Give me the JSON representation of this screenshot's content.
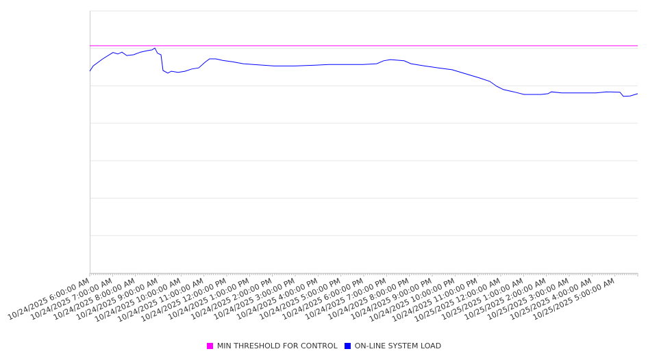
{
  "chart_data": {
    "type": "line",
    "title": "",
    "xlabel": "",
    "ylabel": "",
    "grid": true,
    "legend_position": "bottom",
    "x_unit": "hours since 10/24/2025 6:00:00 AM",
    "xlim": [
      0,
      24
    ],
    "ylim": [
      0,
      7
    ],
    "x_tick_labels": [
      "10/24/2025 6:00:00 AM",
      "10/24/2025 7:00:00 AM",
      "10/24/2025 8:00:00 AM",
      "10/24/2025 9:00:00 AM",
      "10/24/2025 10:00:00 AM",
      "10/24/2025 11:00:00 AM",
      "10/24/2025 12:00:00 PM",
      "10/24/2025 1:00:00 PM",
      "10/24/2025 2:00:00 PM",
      "10/24/2025 3:00:00 PM",
      "10/24/2025 4:00:00 PM",
      "10/24/2025 5:00:00 PM",
      "10/24/2025 6:00:00 PM",
      "10/24/2025 7:00:00 PM",
      "10/24/2025 8:00:00 PM",
      "10/24/2025 9:00:00 PM",
      "10/24/2025 10:00:00 PM",
      "10/24/2025 11:00:00 PM",
      "10/25/2025 12:00:00 AM",
      "10/25/2025 1:00:00 AM",
      "10/25/2025 2:00:00 AM",
      "10/25/2025 3:00:00 AM",
      "10/25/2025 4:00:00 AM",
      "10/25/2025 5:00:00 AM"
    ],
    "series": [
      {
        "name": "MIN THRESHOLD FOR CONTROL",
        "color": "#ff00ff",
        "x": [
          0,
          24
        ],
        "y": [
          6.07,
          6.07
        ]
      },
      {
        "name": "ON-LINE SYSTEM LOAD",
        "color": "#0000ff",
        "x": [
          0,
          0.15,
          0.57,
          1.02,
          1.23,
          1.41,
          1.62,
          1.92,
          2.22,
          2.52,
          2.73,
          2.85,
          2.97,
          3.12,
          3.21,
          3.42,
          3.57,
          3.87,
          4.17,
          4.47,
          4.77,
          5.07,
          5.25,
          5.52,
          5.82,
          6.27,
          6.72,
          7.17,
          8.07,
          8.97,
          9.87,
          10.47,
          11.07,
          11.97,
          12.57,
          12.87,
          13.17,
          13.77,
          14.07,
          14.67,
          15.27,
          15.87,
          16.47,
          17.07,
          17.52,
          17.82,
          18.12,
          18.57,
          19.02,
          19.77,
          20.07,
          20.22,
          20.67,
          21.42,
          22.17,
          22.62,
          23.22,
          23.37,
          23.67,
          24.0
        ],
        "y": [
          5.39,
          5.53,
          5.72,
          5.89,
          5.85,
          5.9,
          5.81,
          5.83,
          5.9,
          5.94,
          5.96,
          6.01,
          5.87,
          5.83,
          5.41,
          5.34,
          5.39,
          5.36,
          5.39,
          5.45,
          5.48,
          5.64,
          5.72,
          5.72,
          5.68,
          5.64,
          5.59,
          5.57,
          5.53,
          5.53,
          5.55,
          5.57,
          5.57,
          5.57,
          5.59,
          5.67,
          5.7,
          5.67,
          5.59,
          5.53,
          5.48,
          5.43,
          5.32,
          5.21,
          5.12,
          4.99,
          4.9,
          4.84,
          4.77,
          4.77,
          4.79,
          4.84,
          4.81,
          4.81,
          4.81,
          4.84,
          4.83,
          4.72,
          4.73,
          4.79
        ]
      }
    ]
  }
}
